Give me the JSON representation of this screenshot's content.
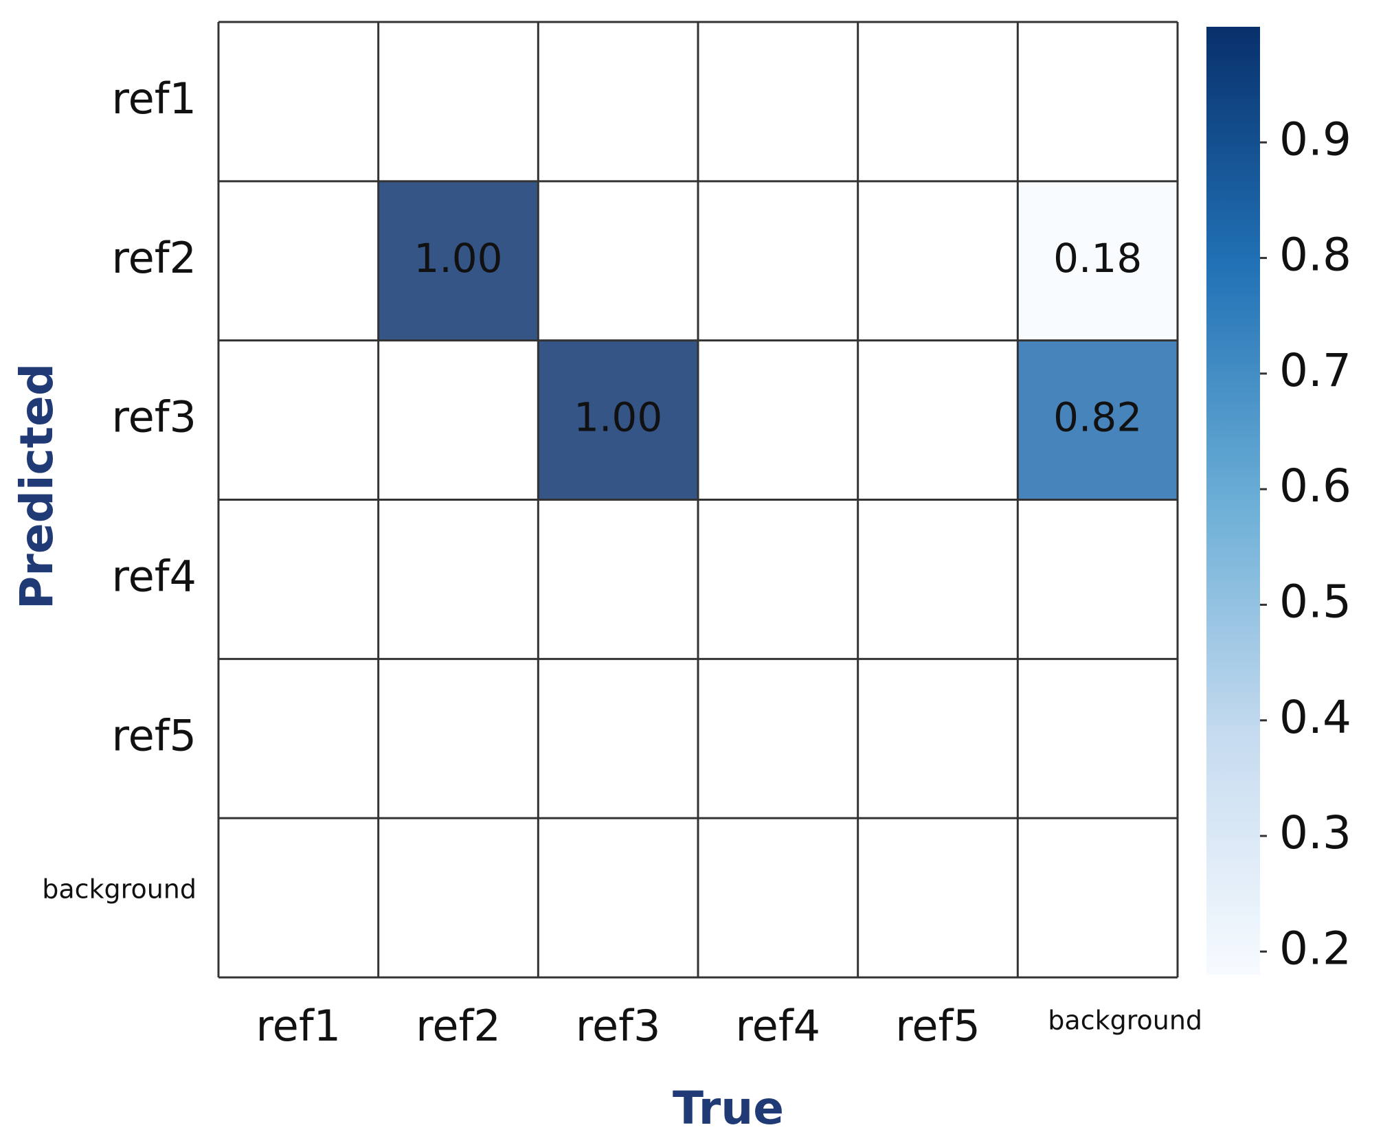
{
  "chart_data": {
    "type": "heatmap",
    "x_label": "True",
    "y_label": "Predicted",
    "x_categories": [
      "ref1",
      "ref2",
      "ref3",
      "ref4",
      "ref5",
      "background"
    ],
    "y_categories": [
      "ref1",
      "ref2",
      "ref3",
      "ref4",
      "ref5",
      "background"
    ],
    "values": [
      [
        null,
        null,
        null,
        null,
        null,
        null
      ],
      [
        null,
        1,
        null,
        null,
        null,
        0.18
      ],
      [
        null,
        null,
        1,
        null,
        null,
        0.82
      ],
      [
        null,
        null,
        null,
        null,
        null,
        null
      ],
      [
        null,
        null,
        null,
        null,
        null,
        null
      ],
      [
        null,
        null,
        null,
        null,
        null,
        null
      ]
    ],
    "value_labels": [
      [
        null,
        null,
        null,
        null,
        null,
        null
      ],
      [
        null,
        "1.00",
        null,
        null,
        null,
        "0.18"
      ],
      [
        null,
        null,
        "1.00",
        null,
        null,
        "0.82"
      ],
      [
        null,
        null,
        null,
        null,
        null,
        null
      ],
      [
        null,
        null,
        null,
        null,
        null,
        null
      ],
      [
        null,
        null,
        null,
        null,
        null,
        null
      ]
    ],
    "colorscale": [
      "#f7fbff",
      "#c6dbef",
      "#6baed6",
      "#2171b5",
      "#08306b"
    ],
    "zlim": [
      0.18,
      1.0
    ],
    "zticks": [
      0.2,
      0.3,
      0.4,
      0.5,
      0.6,
      0.7,
      0.8,
      0.9
    ]
  }
}
